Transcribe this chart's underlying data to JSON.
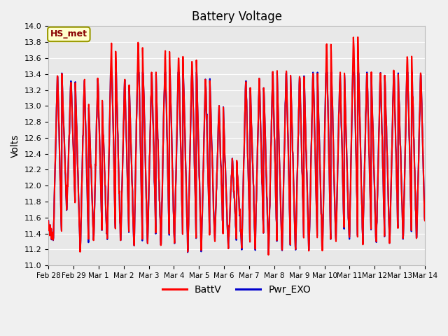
{
  "title": "Battery Voltage",
  "ylabel": "Volts",
  "ylim": [
    11.0,
    14.0
  ],
  "yticks": [
    11.0,
    11.2,
    11.4,
    11.6,
    11.8,
    12.0,
    12.2,
    12.4,
    12.6,
    12.8,
    13.0,
    13.2,
    13.4,
    13.6,
    13.8,
    14.0
  ],
  "xtick_labels": [
    "Feb 28",
    "Feb 29",
    "Mar 1",
    "Mar 2",
    "Mar 3",
    "Mar 4",
    "Mar 5",
    "Mar 6",
    "Mar 7",
    "Mar 8",
    "Mar 9",
    "Mar 10",
    "Mar 11",
    "Mar 12",
    "Mar 13",
    "Mar 14"
  ],
  "line1_color": "#ff0000",
  "line2_color": "#0000cc",
  "line1_label": "BattV",
  "line2_label": "Pwr_EXO",
  "line_width": 1.5,
  "plot_bg_color": "#e8e8e8",
  "fig_bg_color": "#f0f0f0",
  "grid_color": "#ffffff",
  "annotation_text": "HS_met",
  "annotation_bg": "#ffffcc",
  "annotation_border": "#999900",
  "title_fontsize": 12
}
